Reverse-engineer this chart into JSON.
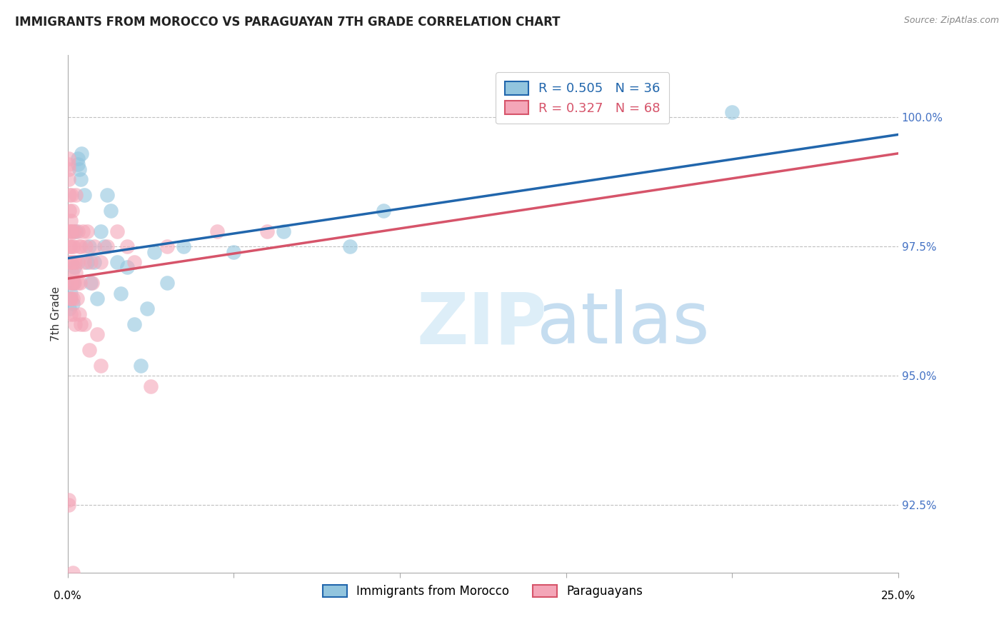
{
  "title": "IMMIGRANTS FROM MOROCCO VS PARAGUAYAN 7TH GRADE CORRELATION CHART",
  "source": "Source: ZipAtlas.com",
  "ylabel": "7th Grade",
  "ytick_values": [
    92.5,
    95.0,
    97.5,
    100.0
  ],
  "xmin": 0.0,
  "xmax": 25.0,
  "ymin": 91.2,
  "ymax": 101.2,
  "legend_blue_r": "0.505",
  "legend_blue_n": "36",
  "legend_pink_r": "0.327",
  "legend_pink_n": "68",
  "legend_blue_label": "Immigrants from Morocco",
  "legend_pink_label": "Paraguayans",
  "blue_color": "#92c5de",
  "pink_color": "#f4a6b8",
  "trendline_blue": "#2166ac",
  "trendline_pink": "#d6546a",
  "blue_scatter": [
    [
      0.05,
      96.3
    ],
    [
      0.08,
      96.5
    ],
    [
      0.1,
      96.6
    ],
    [
      0.15,
      96.4
    ],
    [
      0.18,
      96.8
    ],
    [
      0.2,
      97.1
    ],
    [
      0.25,
      97.8
    ],
    [
      0.3,
      99.1
    ],
    [
      0.32,
      99.2
    ],
    [
      0.35,
      99.0
    ],
    [
      0.4,
      98.8
    ],
    [
      0.42,
      99.3
    ],
    [
      0.5,
      98.5
    ],
    [
      0.6,
      97.2
    ],
    [
      0.65,
      97.5
    ],
    [
      0.7,
      96.8
    ],
    [
      0.8,
      97.2
    ],
    [
      0.9,
      96.5
    ],
    [
      1.0,
      97.8
    ],
    [
      1.1,
      97.5
    ],
    [
      1.2,
      98.5
    ],
    [
      1.3,
      98.2
    ],
    [
      1.5,
      97.2
    ],
    [
      1.6,
      96.6
    ],
    [
      1.8,
      97.1
    ],
    [
      2.0,
      96.0
    ],
    [
      2.2,
      95.2
    ],
    [
      2.4,
      96.3
    ],
    [
      2.6,
      97.4
    ],
    [
      3.0,
      96.8
    ],
    [
      3.5,
      97.5
    ],
    [
      5.0,
      97.4
    ],
    [
      6.5,
      97.8
    ],
    [
      8.5,
      97.5
    ],
    [
      9.5,
      98.2
    ],
    [
      20.0,
      100.1
    ]
  ],
  "pink_scatter": [
    [
      0.02,
      99.1
    ],
    [
      0.02,
      99.2
    ],
    [
      0.03,
      99.0
    ],
    [
      0.04,
      98.8
    ],
    [
      0.05,
      98.5
    ],
    [
      0.05,
      98.2
    ],
    [
      0.06,
      97.8
    ],
    [
      0.06,
      97.5
    ],
    [
      0.07,
      97.8
    ],
    [
      0.07,
      97.2
    ],
    [
      0.08,
      97.5
    ],
    [
      0.08,
      96.8
    ],
    [
      0.09,
      96.5
    ],
    [
      0.09,
      96.2
    ],
    [
      0.1,
      98.0
    ],
    [
      0.1,
      97.2
    ],
    [
      0.1,
      96.5
    ],
    [
      0.12,
      98.5
    ],
    [
      0.12,
      97.8
    ],
    [
      0.12,
      96.8
    ],
    [
      0.13,
      98.2
    ],
    [
      0.13,
      97.5
    ],
    [
      0.14,
      97.0
    ],
    [
      0.15,
      97.8
    ],
    [
      0.15,
      96.5
    ],
    [
      0.16,
      97.2
    ],
    [
      0.17,
      96.8
    ],
    [
      0.18,
      97.5
    ],
    [
      0.18,
      96.2
    ],
    [
      0.2,
      97.8
    ],
    [
      0.2,
      96.8
    ],
    [
      0.22,
      97.2
    ],
    [
      0.22,
      96.0
    ],
    [
      0.25,
      98.5
    ],
    [
      0.25,
      97.0
    ],
    [
      0.28,
      96.5
    ],
    [
      0.3,
      97.8
    ],
    [
      0.3,
      96.8
    ],
    [
      0.32,
      97.2
    ],
    [
      0.35,
      97.5
    ],
    [
      0.35,
      96.2
    ],
    [
      0.38,
      96.8
    ],
    [
      0.4,
      97.5
    ],
    [
      0.4,
      96.0
    ],
    [
      0.45,
      97.8
    ],
    [
      0.5,
      97.2
    ],
    [
      0.5,
      96.0
    ],
    [
      0.55,
      97.5
    ],
    [
      0.6,
      97.8
    ],
    [
      0.65,
      95.5
    ],
    [
      0.7,
      97.2
    ],
    [
      0.75,
      96.8
    ],
    [
      0.8,
      97.5
    ],
    [
      0.9,
      95.8
    ],
    [
      1.0,
      97.2
    ],
    [
      1.0,
      95.2
    ],
    [
      1.2,
      97.5
    ],
    [
      1.5,
      97.8
    ],
    [
      1.8,
      97.5
    ],
    [
      2.0,
      97.2
    ],
    [
      2.5,
      94.8
    ],
    [
      3.0,
      97.5
    ],
    [
      4.5,
      97.8
    ],
    [
      6.0,
      97.8
    ],
    [
      0.02,
      92.6
    ],
    [
      0.03,
      92.5
    ],
    [
      0.1,
      90.8
    ],
    [
      0.15,
      91.2
    ]
  ]
}
